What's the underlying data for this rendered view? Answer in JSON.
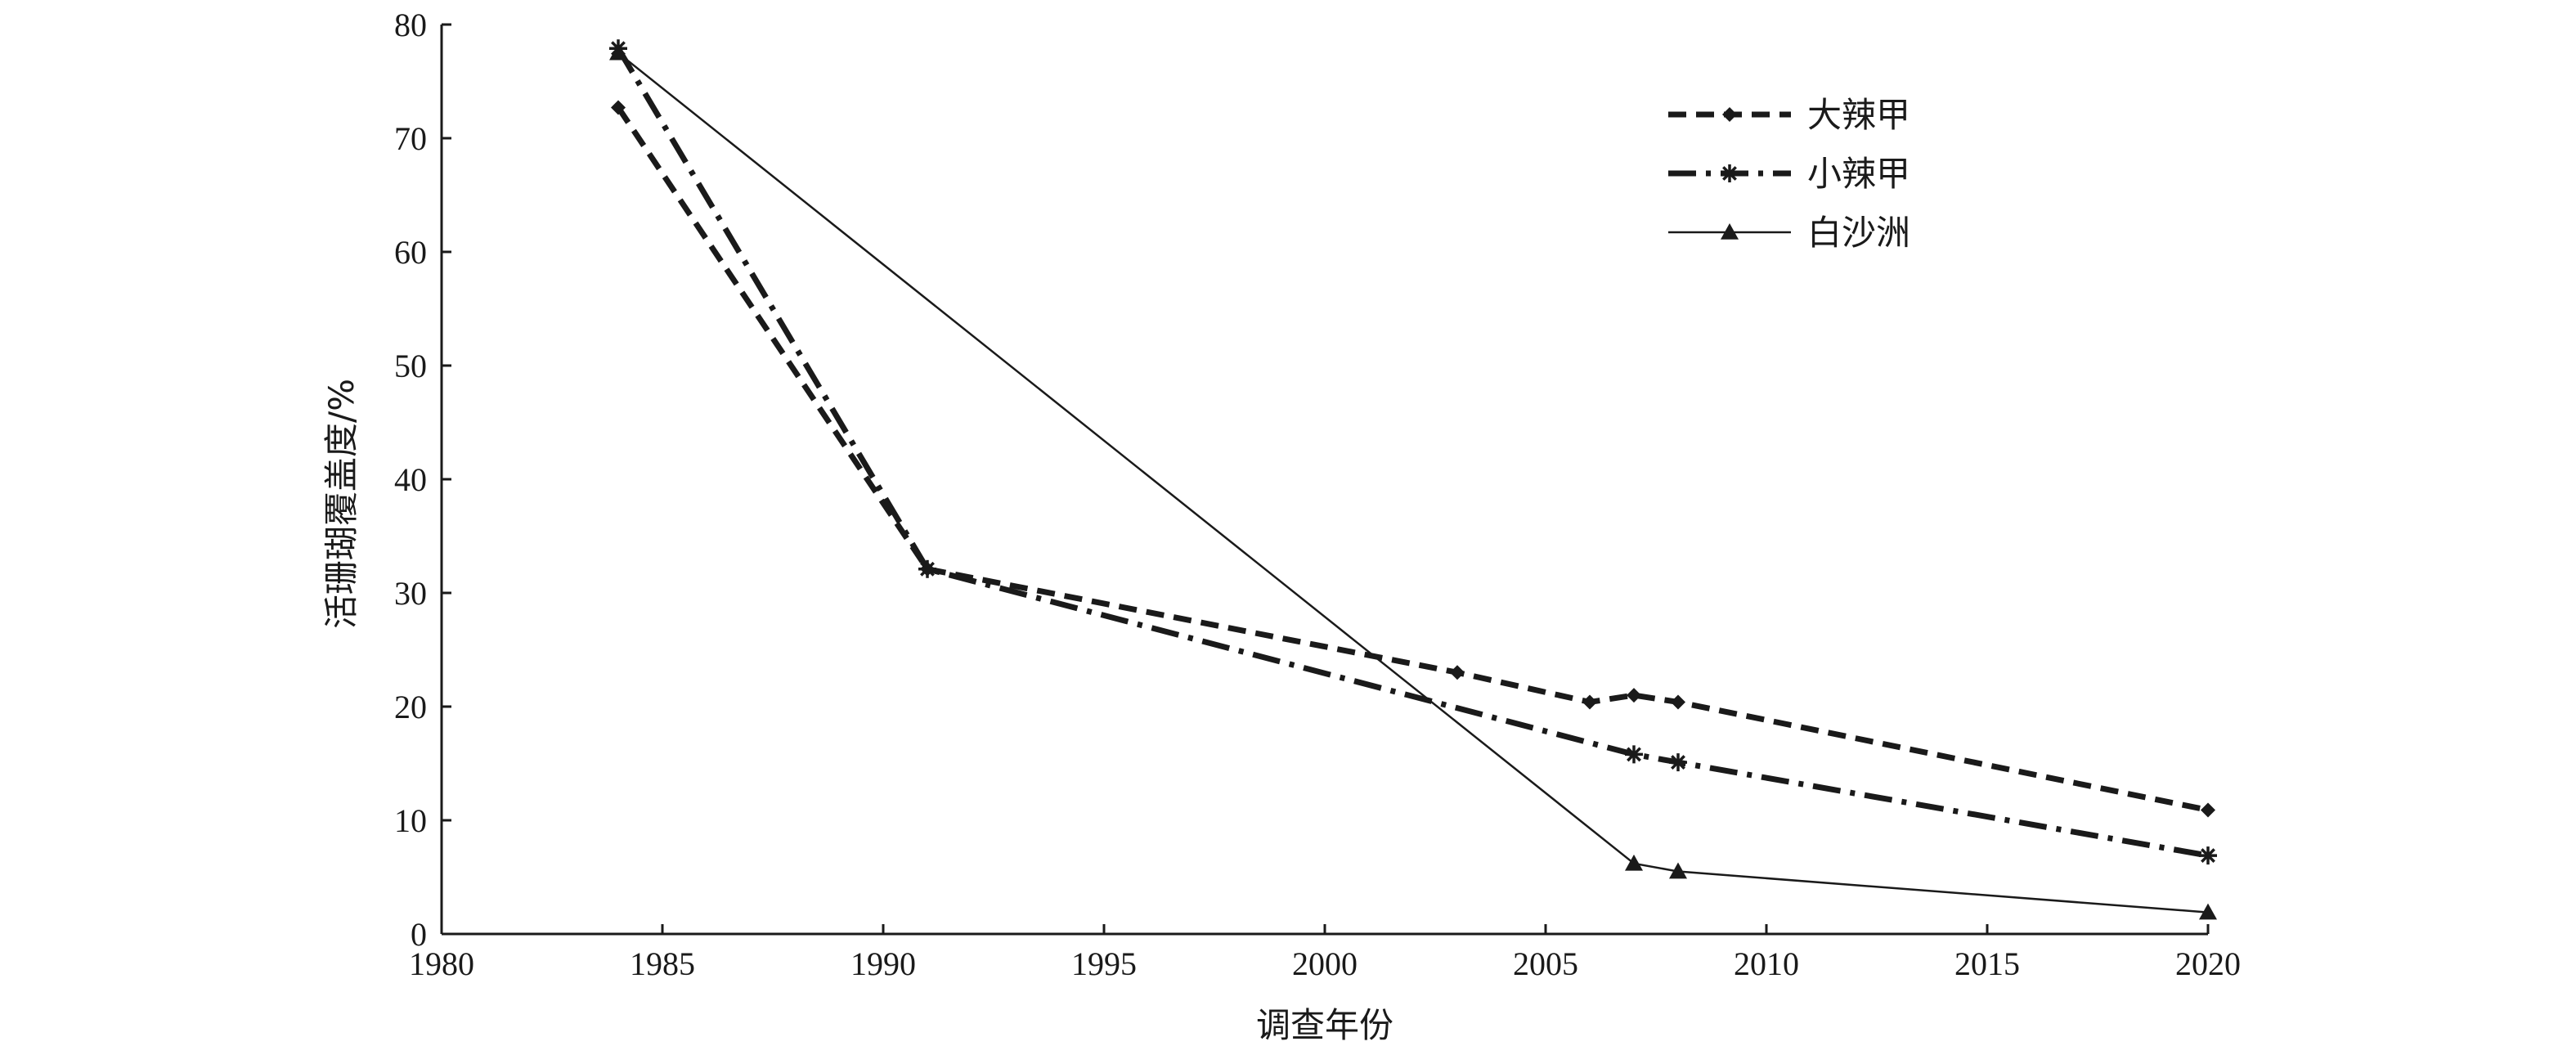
{
  "chart_data": {
    "type": "line",
    "title": "",
    "xlabel": "调查年份",
    "ylabel": "活珊瑚覆盖度/%",
    "xlim": [
      1980,
      2020
    ],
    "ylim": [
      0,
      80
    ],
    "xticks": [
      1980,
      1985,
      1990,
      1995,
      2000,
      2005,
      2010,
      2015,
      2020
    ],
    "yticks": [
      0,
      10,
      20,
      30,
      40,
      50,
      60,
      70,
      80
    ],
    "grid": false,
    "legend_position": "top-right",
    "series": [
      {
        "name": "大辣甲",
        "line_style": "dashed",
        "marker": "diamond",
        "color": "#1a1a1a",
        "points": [
          [
            1984,
            72.7
          ],
          [
            1991,
            32.1
          ],
          [
            2003,
            23.0
          ],
          [
            2006,
            20.4
          ],
          [
            2007,
            21.0
          ],
          [
            2008,
            20.4
          ],
          [
            2020,
            10.9
          ]
        ]
      },
      {
        "name": "小辣甲",
        "line_style": "dash-dot",
        "marker": "asterisk",
        "color": "#1a1a1a",
        "points": [
          [
            1984,
            77.9
          ],
          [
            1991,
            32.1
          ],
          [
            2007,
            15.8
          ],
          [
            2008,
            15.1
          ],
          [
            2020,
            6.9
          ]
        ]
      },
      {
        "name": "白沙洲",
        "line_style": "solid",
        "marker": "triangle",
        "color": "#1a1a1a",
        "points": [
          [
            1984,
            77.5
          ],
          [
            2007,
            6.2
          ],
          [
            2008,
            5.5
          ],
          [
            2020,
            1.9
          ]
        ]
      }
    ]
  }
}
